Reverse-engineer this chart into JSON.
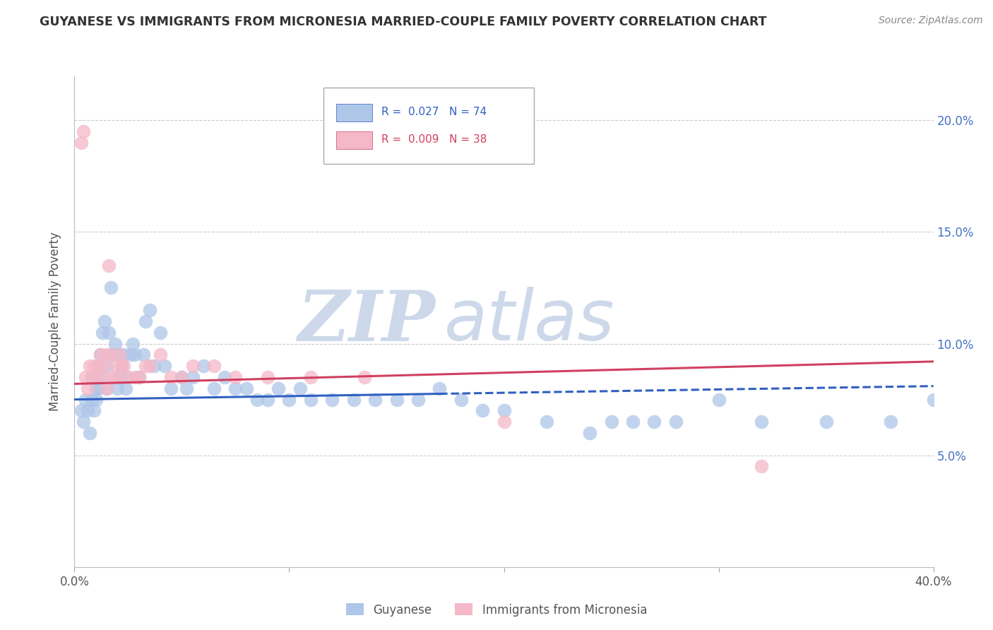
{
  "title": "GUYANESE VS IMMIGRANTS FROM MICRONESIA MARRIED-COUPLE FAMILY POVERTY CORRELATION CHART",
  "source": "Source: ZipAtlas.com",
  "ylabel": "Married-Couple Family Poverty",
  "xlim": [
    0.0,
    40.0
  ],
  "ylim": [
    0.0,
    22.0
  ],
  "blue_label": "Guyanese",
  "pink_label": "Immigrants from Micronesia",
  "blue_R": 0.027,
  "blue_N": 74,
  "pink_R": 0.009,
  "pink_N": 38,
  "blue_color": "#AEC6E8",
  "pink_color": "#F4B8C8",
  "trend_blue_color": "#3060C0",
  "trend_pink_color": "#D04060",
  "watermark_zip": "ZIP",
  "watermark_atlas": "atlas",
  "watermark_color_zip": "#C8D4E8",
  "watermark_color_atlas": "#C8D4E8",
  "blue_x": [
    0.3,
    0.4,
    0.5,
    0.6,
    0.7,
    0.8,
    0.8,
    0.9,
    1.0,
    1.0,
    1.1,
    1.1,
    1.2,
    1.2,
    1.3,
    1.4,
    1.5,
    1.5,
    1.6,
    1.7,
    1.8,
    1.9,
    2.0,
    2.0,
    2.1,
    2.2,
    2.3,
    2.4,
    2.5,
    2.6,
    2.7,
    2.8,
    3.0,
    3.2,
    3.3,
    3.5,
    3.7,
    4.0,
    4.2,
    4.5,
    5.0,
    5.2,
    5.5,
    6.0,
    6.5,
    7.0,
    7.5,
    8.0,
    8.5,
    9.0,
    9.5,
    10.0,
    10.5,
    11.0,
    12.0,
    13.0,
    14.0,
    15.0,
    16.0,
    17.0,
    18.0,
    19.0,
    20.0,
    22.0,
    24.0,
    25.0,
    26.0,
    27.0,
    28.0,
    30.0,
    32.0,
    35.0,
    38.0,
    40.0
  ],
  "blue_y": [
    7.0,
    6.5,
    7.5,
    7.0,
    6.0,
    7.5,
    8.5,
    7.0,
    7.5,
    8.0,
    8.0,
    9.0,
    8.5,
    9.5,
    10.5,
    11.0,
    8.0,
    9.0,
    10.5,
    12.5,
    9.5,
    10.0,
    9.5,
    8.0,
    8.5,
    9.0,
    9.5,
    8.0,
    8.5,
    9.5,
    10.0,
    9.5,
    8.5,
    9.5,
    11.0,
    11.5,
    9.0,
    10.5,
    9.0,
    8.0,
    8.5,
    8.0,
    8.5,
    9.0,
    8.0,
    8.5,
    8.0,
    8.0,
    7.5,
    7.5,
    8.0,
    7.5,
    8.0,
    7.5,
    7.5,
    7.5,
    7.5,
    7.5,
    7.5,
    8.0,
    7.5,
    7.0,
    7.0,
    6.5,
    6.0,
    6.5,
    6.5,
    6.5,
    6.5,
    7.5,
    6.5,
    6.5,
    6.5,
    7.5
  ],
  "pink_x": [
    0.3,
    0.4,
    0.5,
    0.6,
    0.7,
    0.8,
    0.9,
    1.0,
    1.1,
    1.2,
    1.3,
    1.4,
    1.5,
    1.5,
    1.6,
    1.7,
    1.8,
    1.9,
    2.0,
    2.1,
    2.2,
    2.3,
    2.5,
    2.8,
    3.0,
    3.3,
    3.5,
    4.0,
    4.5,
    5.0,
    5.5,
    6.5,
    7.5,
    9.0,
    11.0,
    13.5,
    20.0,
    32.0
  ],
  "pink_y": [
    19.0,
    19.5,
    8.5,
    8.0,
    9.0,
    8.5,
    9.0,
    8.5,
    9.0,
    9.5,
    9.0,
    8.5,
    8.0,
    9.5,
    13.5,
    9.5,
    8.5,
    9.0,
    8.5,
    9.5,
    9.0,
    9.0,
    8.5,
    8.5,
    8.5,
    9.0,
    9.0,
    9.5,
    8.5,
    8.5,
    9.0,
    9.0,
    8.5,
    8.5,
    8.5,
    8.5,
    6.5,
    4.5
  ],
  "blue_solid_end": 17.0,
  "pink_intercept": 8.2,
  "pink_slope": 0.025,
  "blue_intercept": 7.5,
  "blue_slope": 0.015
}
